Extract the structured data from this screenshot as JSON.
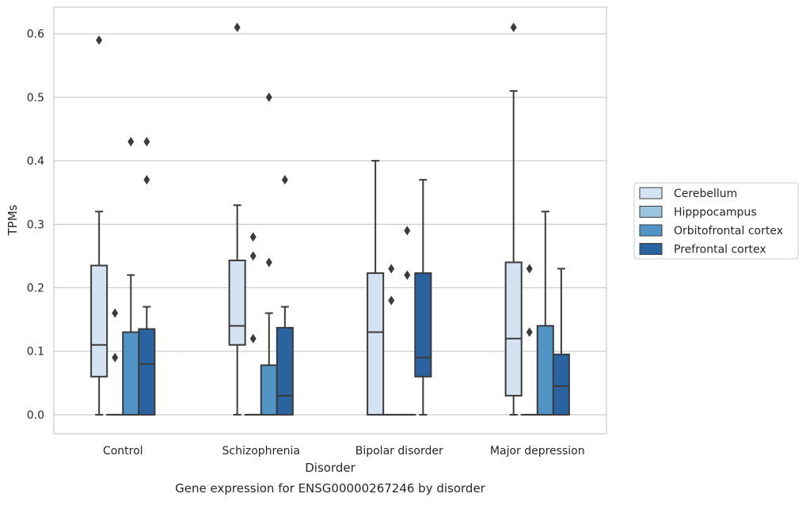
{
  "chart_data": {
    "type": "boxplot",
    "caption": "Gene expression for ENSG00000267246 by disorder",
    "xlabel": "Disorder",
    "ylabel": "TPMs",
    "ylim": [
      -0.03,
      0.642
    ],
    "yticks": [
      0.0,
      0.1,
      0.2,
      0.3,
      0.4,
      0.5,
      0.6
    ],
    "ytick_labels": [
      "0.0",
      "0.1",
      "0.2",
      "0.3",
      "0.4",
      "0.5",
      "0.6"
    ],
    "grid": "horizontal",
    "legend_position": "right",
    "categories": [
      "Control",
      "Schizophrenia",
      "Bipolar disorder",
      "Major depression"
    ],
    "series": [
      {
        "name": "Cerebellum",
        "color": "#d4e3f2",
        "boxes": [
          {
            "whislo": 0.0,
            "q1": 0.06,
            "med": 0.11,
            "q3": 0.235,
            "whishi": 0.32,
            "fliers": [
              0.59
            ]
          },
          {
            "whislo": 0.0,
            "q1": 0.11,
            "med": 0.14,
            "q3": 0.243,
            "whishi": 0.33,
            "fliers": [
              0.61
            ]
          },
          {
            "whislo": 0.0,
            "q1": 0.0,
            "med": 0.13,
            "q3": 0.223,
            "whishi": 0.4,
            "fliers": []
          },
          {
            "whislo": 0.0,
            "q1": 0.03,
            "med": 0.12,
            "q3": 0.24,
            "whishi": 0.51,
            "fliers": [
              0.61
            ]
          }
        ]
      },
      {
        "name": "Hipppocampus",
        "color": "#9ac4e0",
        "boxes": [
          {
            "whislo": 0.0,
            "q1": 0.0,
            "med": 0.0,
            "q3": 0.0,
            "whishi": 0.0,
            "fliers": [
              0.16,
              0.09
            ]
          },
          {
            "whislo": 0.0,
            "q1": 0.0,
            "med": 0.0,
            "q3": 0.0,
            "whishi": 0.0,
            "fliers": [
              0.28,
              0.25,
              0.12
            ]
          },
          {
            "whislo": 0.0,
            "q1": 0.0,
            "med": 0.0,
            "q3": 0.0,
            "whishi": 0.0,
            "fliers": [
              0.23,
              0.18
            ]
          },
          {
            "whislo": 0.0,
            "q1": 0.0,
            "med": 0.0,
            "q3": 0.0,
            "whishi": 0.0,
            "fliers": [
              0.23,
              0.13
            ]
          }
        ]
      },
      {
        "name": "Orbitofrontal cortex",
        "color": "#5095c5",
        "boxes": [
          {
            "whislo": 0.0,
            "q1": 0.0,
            "med": 0.0,
            "q3": 0.13,
            "whishi": 0.22,
            "fliers": [
              0.43
            ]
          },
          {
            "whislo": 0.0,
            "q1": 0.0,
            "med": 0.0,
            "q3": 0.078,
            "whishi": 0.16,
            "fliers": [
              0.5,
              0.24
            ]
          },
          {
            "whislo": 0.0,
            "q1": 0.0,
            "med": 0.0,
            "q3": 0.0,
            "whishi": 0.0,
            "fliers": [
              0.29,
              0.22
            ]
          },
          {
            "whislo": 0.0,
            "q1": 0.0,
            "med": 0.0,
            "q3": 0.14,
            "whishi": 0.32,
            "fliers": []
          }
        ]
      },
      {
        "name": "Prefrontal cortex",
        "color": "#2a64a0",
        "boxes": [
          {
            "whislo": 0.0,
            "q1": 0.0,
            "med": 0.08,
            "q3": 0.135,
            "whishi": 0.17,
            "fliers": [
              0.43,
              0.37
            ]
          },
          {
            "whislo": 0.0,
            "q1": 0.0,
            "med": 0.03,
            "q3": 0.137,
            "whishi": 0.17,
            "fliers": [
              0.37
            ]
          },
          {
            "whislo": 0.0,
            "q1": 0.06,
            "med": 0.09,
            "q3": 0.223,
            "whishi": 0.37,
            "fliers": []
          },
          {
            "whislo": 0.0,
            "q1": 0.0,
            "med": 0.045,
            "q3": 0.095,
            "whishi": 0.23,
            "fliers": []
          }
        ]
      }
    ]
  }
}
